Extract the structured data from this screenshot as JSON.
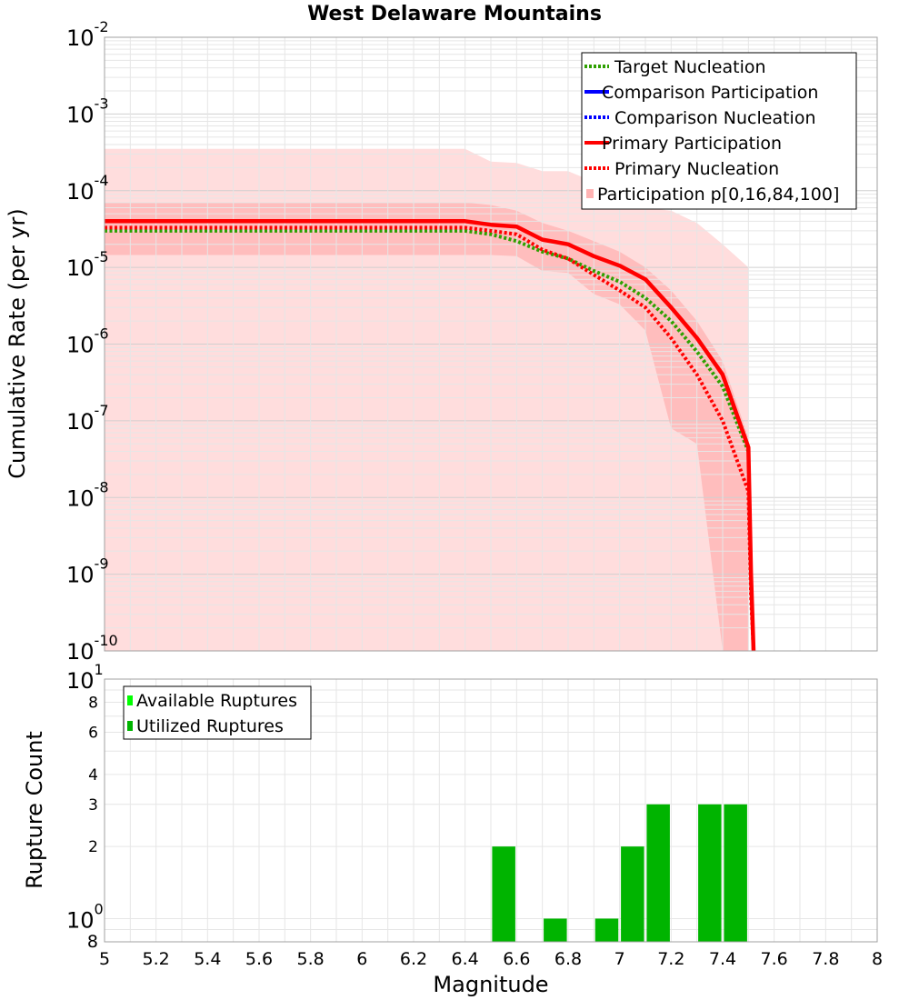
{
  "chart_data": [
    {
      "type": "line",
      "title": "West Delaware Mountains",
      "xlabel": "",
      "ylabel": "Cumulative Rate (per yr)",
      "yscale": "log",
      "xlim": [
        5,
        8
      ],
      "ylim": [
        1e-10,
        0.01
      ],
      "grid": true,
      "legend_position": "top-right",
      "y_tick_labels": [
        {
          "base": "10",
          "exp": "-2"
        },
        {
          "base": "10",
          "exp": "-3"
        },
        {
          "base": "10",
          "exp": "-4"
        },
        {
          "base": "10",
          "exp": "-5"
        },
        {
          "base": "10",
          "exp": "-6"
        },
        {
          "base": "10",
          "exp": "-7"
        },
        {
          "base": "10",
          "exp": "-8"
        },
        {
          "base": "10",
          "exp": "-9"
        },
        {
          "base": "10",
          "exp": "-10"
        }
      ],
      "legend": [
        {
          "label": "Target Nucleation",
          "color": "#2ea000",
          "style": "dotted"
        },
        {
          "label": "Comparison Participation",
          "color": "#0000ff",
          "style": "solid"
        },
        {
          "label": "Comparison Nucleation",
          "color": "#0000ff",
          "style": "dotted"
        },
        {
          "label": "Primary Participation",
          "color": "#ff0000",
          "style": "solid"
        },
        {
          "label": "Primary Nucleation",
          "color": "#ff0000",
          "style": "dotted"
        },
        {
          "label": "Participation p[0,16,84,100]",
          "color": "#ffb3b3",
          "style": "fill"
        }
      ],
      "series": [
        {
          "name": "Target Nucleation",
          "color": "#2ea000",
          "style": "dotted",
          "x": [
            5.0,
            6.4,
            6.5,
            6.6,
            6.7,
            6.8,
            6.9,
            7.0,
            7.1,
            7.2,
            7.3,
            7.4,
            7.5
          ],
          "y": [
            3e-05,
            3e-05,
            2.7e-05,
            2.2e-05,
            1.6e-05,
            1.3e-05,
            9e-06,
            6.5e-06,
            4e-06,
            2e-06,
            8e-07,
            2.8e-07,
            4e-08
          ]
        },
        {
          "name": "Primary Participation",
          "color": "#ff0000",
          "style": "solid",
          "x": [
            5.0,
            6.4,
            6.5,
            6.6,
            6.7,
            6.8,
            6.9,
            7.0,
            7.1,
            7.2,
            7.3,
            7.4,
            7.5,
            7.51,
            7.52
          ],
          "y": [
            4e-05,
            4e-05,
            3.6e-05,
            3.4e-05,
            2.3e-05,
            2e-05,
            1.4e-05,
            1.05e-05,
            7e-06,
            3e-06,
            1.2e-06,
            4e-07,
            4.5e-08,
            1e-09,
            1e-10
          ]
        },
        {
          "name": "Primary Nucleation",
          "color": "#ff0000",
          "style": "dotted",
          "x": [
            5.0,
            6.4,
            6.5,
            6.6,
            6.7,
            6.8,
            6.9,
            7.0,
            7.1,
            7.2,
            7.3,
            7.4,
            7.5,
            7.51,
            7.52
          ],
          "y": [
            3.3e-05,
            3.3e-05,
            3e-05,
            2.7e-05,
            1.7e-05,
            1.3e-05,
            8e-06,
            5e-06,
            3e-06,
            1.2e-06,
            4e-07,
            1e-07,
            1.2e-08,
            5e-10,
            1e-10
          ]
        }
      ],
      "bands": [
        {
          "name": "p[0,100]",
          "x": [
            5.0,
            6.4,
            6.5,
            6.6,
            6.7,
            6.8,
            6.9,
            7.0,
            7.1,
            7.2,
            7.3,
            7.4,
            7.5
          ],
          "lower": [
            1e-10,
            1e-10,
            1e-10,
            1e-10,
            1e-10,
            1e-10,
            1e-10,
            1e-10,
            1e-10,
            1e-10,
            1e-10,
            1e-10,
            1e-10
          ],
          "upper": [
            0.00035,
            0.00035,
            0.00024,
            0.00023,
            0.00018,
            0.00018,
            0.00013,
            9e-05,
            6e-05,
            5.5e-05,
            3.8e-05,
            2e-05,
            1e-05
          ]
        },
        {
          "name": "p[16,84]",
          "x": [
            5.0,
            6.4,
            6.5,
            6.6,
            6.7,
            6.8,
            6.9,
            7.0,
            7.1,
            7.2,
            7.3,
            7.4,
            7.5
          ],
          "lower": [
            1.45e-05,
            1.45e-05,
            1.45e-05,
            1.4e-05,
            9e-06,
            8.5e-06,
            4.5e-06,
            3.3e-06,
            1.5e-06,
            8e-08,
            5e-08,
            1e-10,
            1e-10
          ],
          "upper": [
            7e-05,
            7e-05,
            6.5e-05,
            5.5e-05,
            3.8e-05,
            3e-05,
            2.2e-05,
            1.6e-05,
            1e-05,
            5e-06,
            2e-06,
            6e-07,
            6e-08
          ]
        }
      ]
    },
    {
      "type": "bar",
      "xlabel": "Magnitude",
      "ylabel": "Rupture Count",
      "yscale": "log",
      "xlim": [
        5,
        8
      ],
      "ylim": [
        0.8,
        10
      ],
      "grid": true,
      "legend_position": "top-left",
      "x_ticks": [
        "5",
        "5.2",
        "5.4",
        "5.6",
        "5.8",
        "6",
        "6.2",
        "6.4",
        "6.6",
        "6.8",
        "7",
        "7.2",
        "7.4",
        "7.6",
        "7.8",
        "8"
      ],
      "y_major_labels": [
        {
          "value": 10,
          "base": "10",
          "exp": "1"
        },
        {
          "value": 1,
          "base": "10",
          "exp": "0"
        }
      ],
      "y_minor_labels": [
        {
          "value": 8,
          "label": "8"
        },
        {
          "value": 6,
          "label": "6"
        },
        {
          "value": 4,
          "label": "4"
        },
        {
          "value": 3,
          "label": "3"
        },
        {
          "value": 2,
          "label": "2"
        },
        {
          "value": 0.8,
          "label": "8"
        }
      ],
      "legend": [
        {
          "label": "Available Ruptures",
          "color": "#00ff00"
        },
        {
          "label": "Utilized Ruptures",
          "color": "#00b400"
        }
      ],
      "bar_width": 0.09,
      "series": [
        {
          "name": "Utilized Ruptures",
          "color": "#00b400",
          "x": [
            6.55,
            6.75,
            6.95,
            7.05,
            7.15,
            7.35,
            7.45
          ],
          "values": [
            2,
            1,
            1,
            2,
            3,
            3,
            3
          ]
        }
      ]
    }
  ]
}
